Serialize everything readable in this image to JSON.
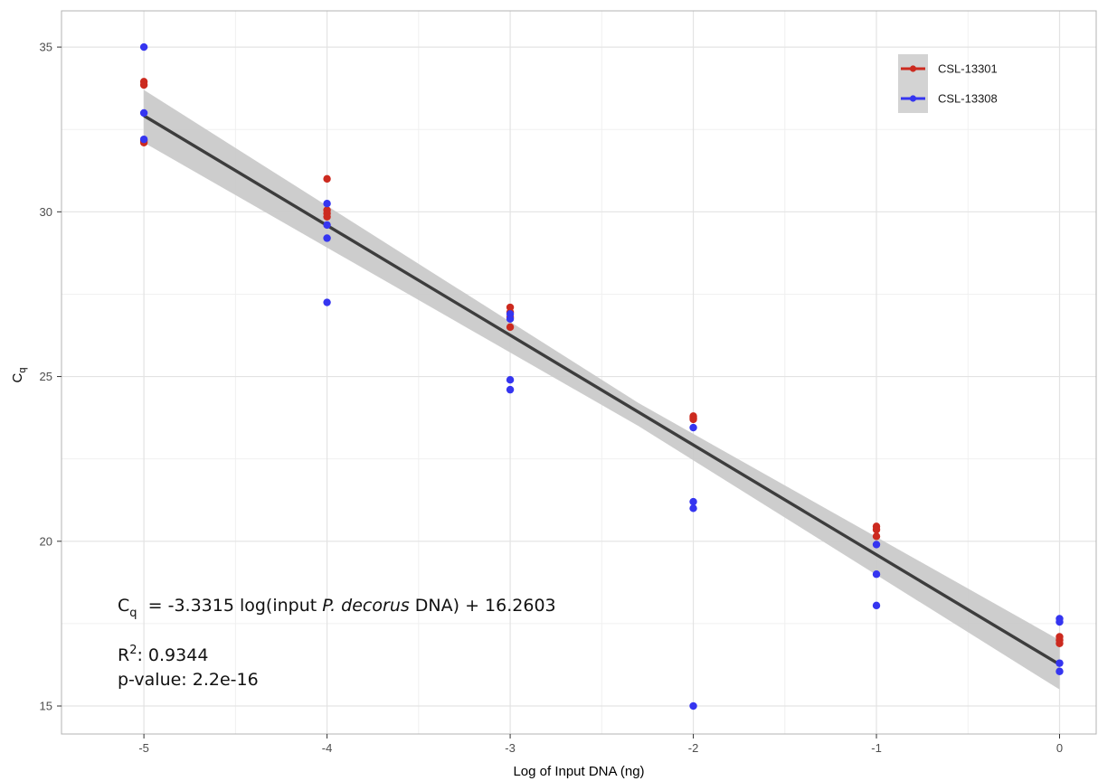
{
  "chart_data": {
    "type": "scatter",
    "title": "",
    "xlabel": "Log of Input DNA (ng)",
    "ylabel_main": "C",
    "ylabel_sub": "q",
    "xlim": [
      -5.45,
      0.2
    ],
    "ylim": [
      14.15,
      36.1
    ],
    "x_ticks": [
      -5,
      -4,
      -3,
      -2,
      -1,
      0
    ],
    "x_tick_labels": [
      "-5",
      "-4",
      "-3",
      "-2",
      "-1",
      "0"
    ],
    "y_ticks": [
      15,
      20,
      25,
      30,
      35
    ],
    "y_tick_labels": [
      "15",
      "20",
      "25",
      "30",
      "35"
    ],
    "grid": true,
    "legend_position": "top-right",
    "series": [
      {
        "name": "CSL-13301",
        "color": "#cc2a1f",
        "points": [
          [
            -5,
            33.95
          ],
          [
            -5,
            33.85
          ],
          [
            -5,
            32.15
          ],
          [
            -5,
            32.1
          ],
          [
            -4,
            31.0
          ],
          [
            -4,
            30.05
          ],
          [
            -4,
            29.95
          ],
          [
            -4,
            29.85
          ],
          [
            -3,
            27.1
          ],
          [
            -3,
            26.95
          ],
          [
            -3,
            26.8
          ],
          [
            -3,
            26.5
          ],
          [
            -2,
            23.8
          ],
          [
            -2,
            23.75
          ],
          [
            -2,
            23.7
          ],
          [
            -1,
            20.45
          ],
          [
            -1,
            20.35
          ],
          [
            -1,
            20.15
          ],
          [
            0,
            17.1
          ],
          [
            0,
            17.0
          ],
          [
            0,
            16.9
          ]
        ]
      },
      {
        "name": "CSL-13308",
        "color": "#3535f0",
        "points": [
          [
            -5,
            35.0
          ],
          [
            -5,
            33.0
          ],
          [
            -5,
            32.2
          ],
          [
            -4,
            30.25
          ],
          [
            -4,
            29.6
          ],
          [
            -4,
            29.2
          ],
          [
            -4,
            27.25
          ],
          [
            -3,
            26.9
          ],
          [
            -3,
            26.75
          ],
          [
            -3,
            24.9
          ],
          [
            -3,
            24.6
          ],
          [
            -2,
            23.45
          ],
          [
            -2,
            21.2
          ],
          [
            -2,
            21.0
          ],
          [
            -2,
            15.0
          ],
          [
            -1,
            19.9
          ],
          [
            -1,
            19.0
          ],
          [
            -1,
            18.05
          ],
          [
            0,
            17.65
          ],
          [
            0,
            17.55
          ],
          [
            0,
            16.3
          ],
          [
            0,
            16.05
          ]
        ]
      }
    ],
    "fit": {
      "slope": -3.3315,
      "intercept": 16.2603,
      "line_color": "#3d3d3d",
      "ribbon_color": "#c9c9c9",
      "ribbon": [
        [
          -5,
          32.1,
          33.7
        ],
        [
          -2.3,
          23.5,
          24.2
        ],
        [
          0,
          15.5,
          17.0
        ]
      ]
    },
    "annotations": {
      "eq_c": "C",
      "eq_sub": "q",
      "eq_a": "  = -3.3315 log(input ",
      "eq_species": "P. decorus",
      "eq_b": " DNA) + 16.2603",
      "r2_label": "R",
      "r2_sup": "2",
      "r2_value": ": 0.9344",
      "pvalue": "p-value: 2.2e-16"
    }
  }
}
